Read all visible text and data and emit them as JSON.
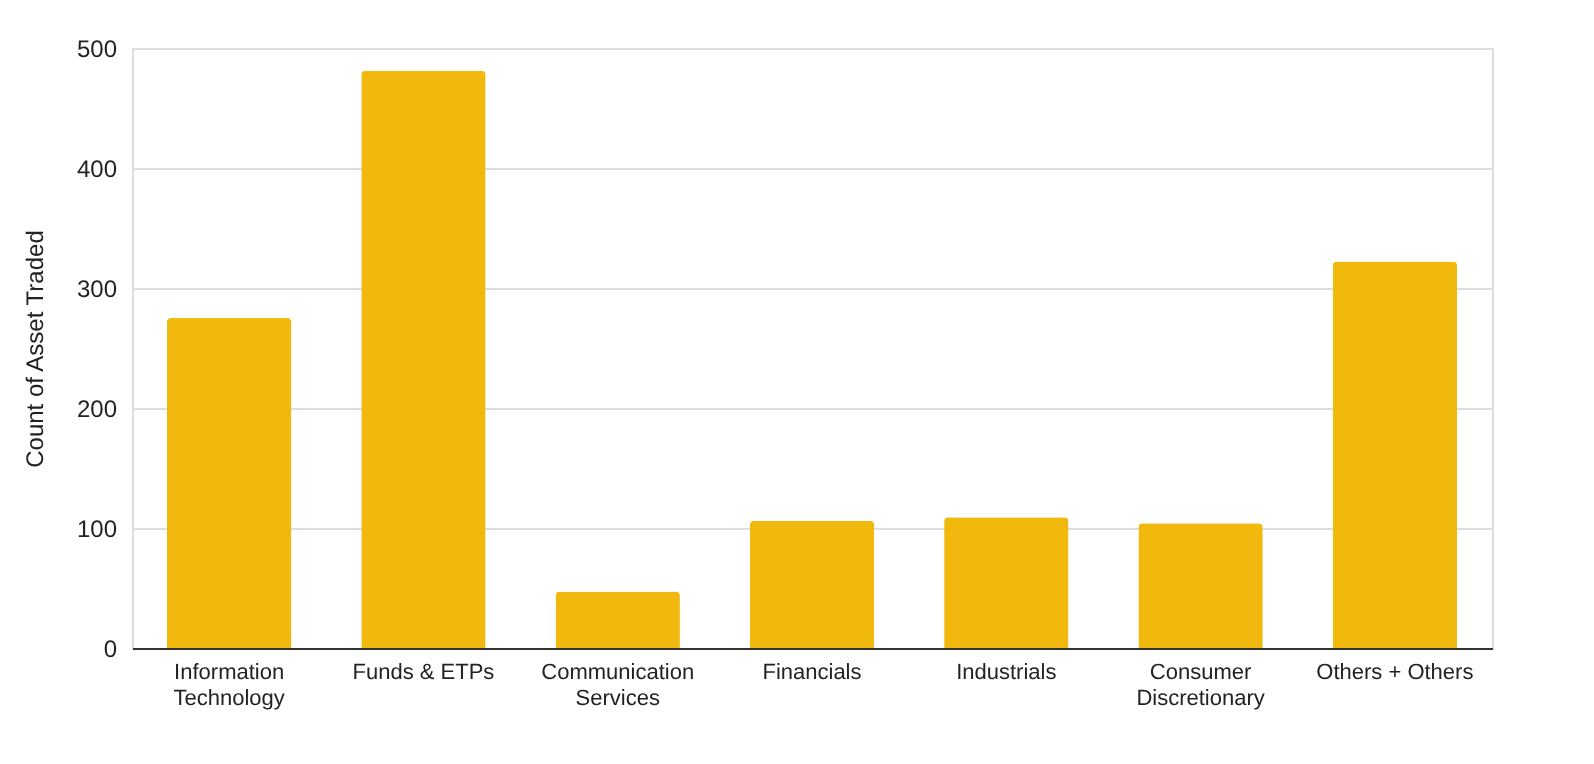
{
  "chart_data": {
    "type": "bar",
    "ylabel": "Count of Asset Traded",
    "categories": [
      "Information Technology",
      "Funds & ETPs",
      "Communication Services",
      "Financials",
      "Industrials",
      "Consumer Discretionary",
      "Others + Others"
    ],
    "series": [
      {
        "color": "#f1b90e",
        "values": [
          275,
          481,
          47,
          106,
          109,
          104,
          322
        ]
      }
    ],
    "ylim": [
      0,
      500
    ],
    "yticks": [
      0,
      100,
      200,
      300,
      400,
      500
    ],
    "grid": "y"
  }
}
